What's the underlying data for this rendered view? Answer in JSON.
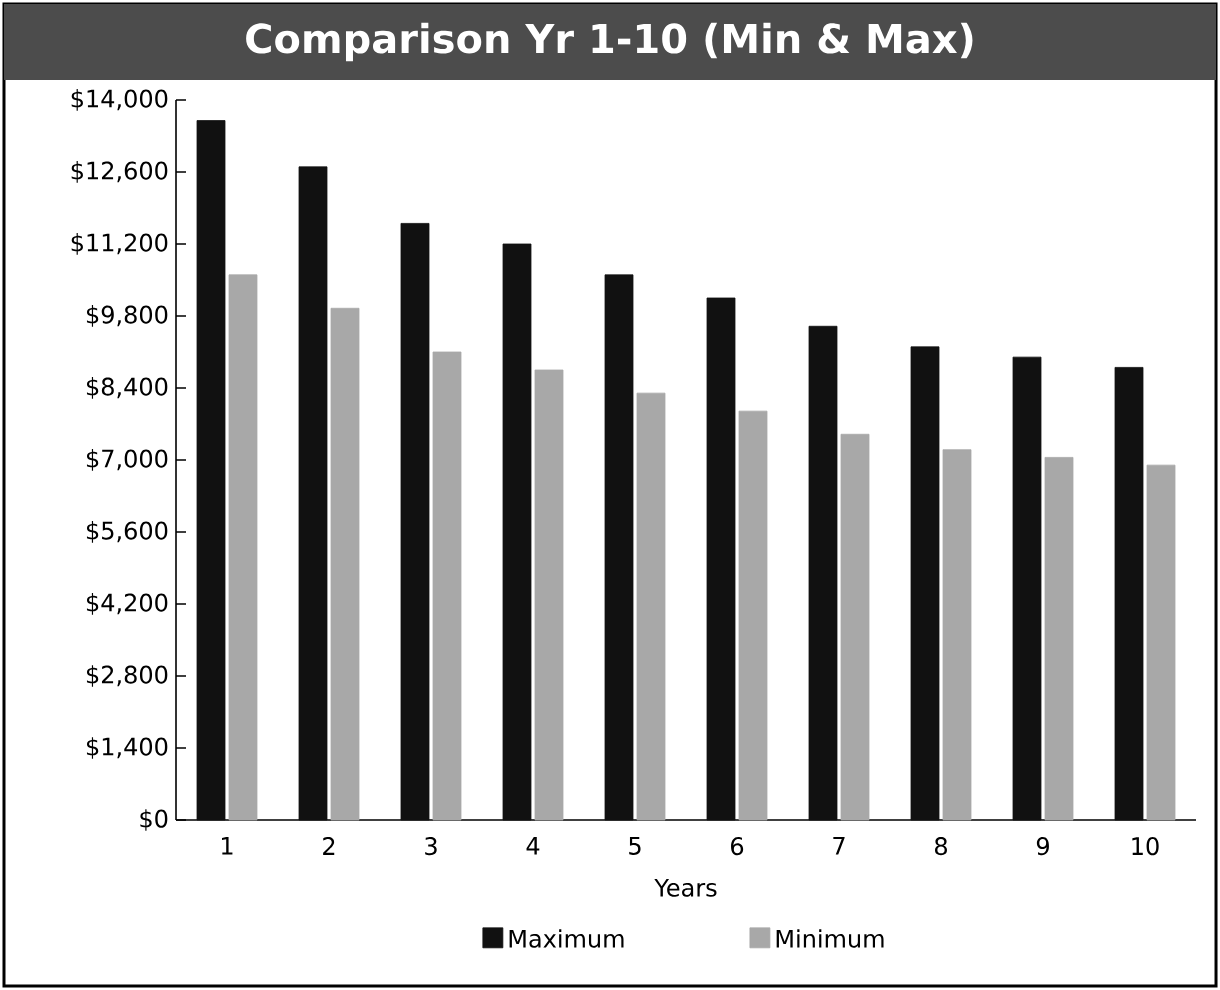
{
  "chart_data": {
    "type": "bar",
    "title": "Comparison Yr 1-10 (Min & Max)",
    "xlabel": "Years",
    "categories": [
      "1",
      "2",
      "3",
      "4",
      "5",
      "6",
      "7",
      "8",
      "9",
      "10"
    ],
    "series": [
      {
        "name": "Maximum",
        "color": "#111111",
        "values": [
          13600,
          12700,
          11600,
          11200,
          10600,
          10150,
          9600,
          9200,
          9000,
          8800
        ]
      },
      {
        "name": "Minimum",
        "color": "#a8a8a8",
        "values": [
          10600,
          9950,
          9100,
          8750,
          8300,
          7950,
          7500,
          7200,
          7050,
          6900
        ]
      }
    ],
    "ylim": [
      0,
      14000
    ],
    "yticks": [
      {
        "value": 0,
        "label": "$0"
      },
      {
        "value": 1400,
        "label": "$1,400"
      },
      {
        "value": 2800,
        "label": "$2,800"
      },
      {
        "value": 4200,
        "label": "$4,200"
      },
      {
        "value": 5600,
        "label": "$5,600"
      },
      {
        "value": 7000,
        "label": "$7,000"
      },
      {
        "value": 8400,
        "label": "$8,400"
      },
      {
        "value": 9800,
        "label": "$9,800"
      },
      {
        "value": 11200,
        "label": "$11,200"
      },
      {
        "value": 12600,
        "label": "$12,600"
      },
      {
        "value": 14000,
        "label": "$14,000"
      }
    ],
    "grid": false,
    "legend": "bottom"
  }
}
